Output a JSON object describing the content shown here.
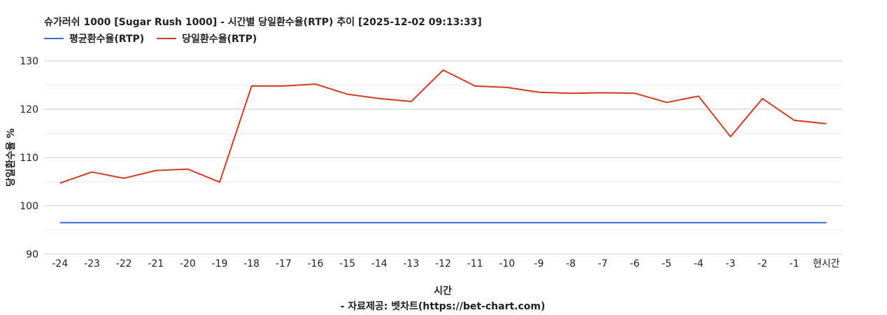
{
  "title": "슈가러쉬 1000 [Sugar Rush 1000] - 시간별 당일환수율(RTP) 추이 [2025-12-02 09:13:33]",
  "legend": [
    {
      "label": "평균환수율(RTP)",
      "color": "#3b6fd6"
    },
    {
      "label": "당일환수율(RTP)",
      "color": "#d63b1e"
    }
  ],
  "chart_data": {
    "type": "line",
    "xlabel": "시간",
    "ylabel": "당일환수율 %",
    "source_note": "- 자료제공: 벳차트(https://bet-chart.com)",
    "ylim": [
      90,
      130
    ],
    "yticks": [
      90,
      100,
      110,
      120,
      130
    ],
    "grid": true,
    "legend_position": "top-left",
    "categories": [
      "-24",
      "-23",
      "-22",
      "-21",
      "-20",
      "-19",
      "-18",
      "-17",
      "-16",
      "-15",
      "-14",
      "-13",
      "-12",
      "-11",
      "-10",
      "-9",
      "-8",
      "-7",
      "-6",
      "-5",
      "-4",
      "-3",
      "-2",
      "-1",
      "현시간"
    ],
    "series": [
      {
        "name": "평균환수율(RTP)",
        "color": "#3b6fd6",
        "values": [
          96.5,
          96.5,
          96.5,
          96.5,
          96.5,
          96.5,
          96.5,
          96.5,
          96.5,
          96.5,
          96.5,
          96.5,
          96.5,
          96.5,
          96.5,
          96.5,
          96.5,
          96.5,
          96.5,
          96.5,
          96.5,
          96.5,
          96.5,
          96.5,
          96.5
        ]
      },
      {
        "name": "당일환수율(RTP)",
        "color": "#d63b1e",
        "values": [
          104.7,
          107.0,
          105.7,
          107.3,
          107.6,
          104.9,
          124.8,
          124.8,
          125.2,
          123.1,
          122.2,
          121.6,
          128.1,
          124.8,
          124.5,
          123.5,
          123.3,
          123.4,
          123.3,
          121.4,
          122.7,
          114.3,
          122.2,
          117.7,
          117.0
        ]
      }
    ]
  }
}
